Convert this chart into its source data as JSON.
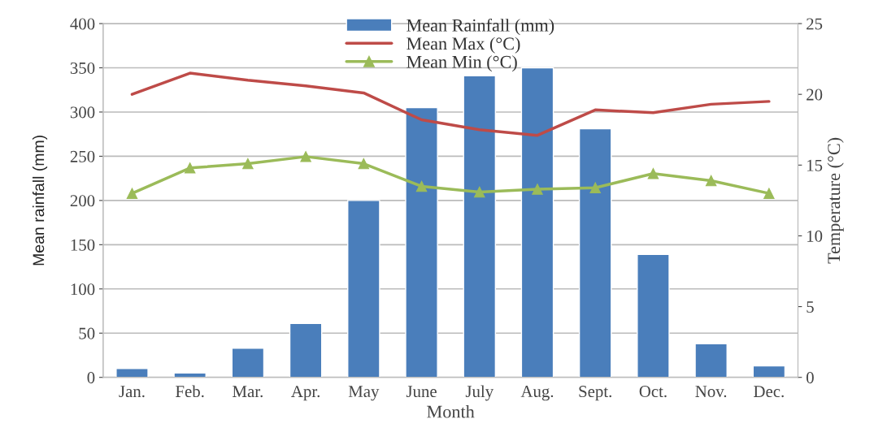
{
  "chart_data": {
    "type": "bar",
    "xlabel": "Month",
    "ylabel": "Mean rainfall (mm)",
    "y2label": "Temperature (°C)",
    "categories": [
      "Jan.",
      "Feb.",
      "Mar.",
      "Apr.",
      "May",
      "June",
      "July",
      "Aug.",
      "Sept.",
      "Oct.",
      "Nov.",
      "Dec."
    ],
    "series": [
      {
        "name": "Mean Rainfall (mm)",
        "color": "#4a7ebb",
        "values": [
          10,
          5,
          33,
          61,
          200,
          305,
          341,
          350,
          281,
          139,
          38,
          13
        ]
      },
      {
        "name": "Mean Max (°C)",
        "type": "line",
        "axis": "y2",
        "color": "#be4b48",
        "marker": "none",
        "values": [
          20.0,
          21.5,
          21.0,
          20.6,
          20.1,
          18.2,
          17.5,
          17.1,
          18.9,
          18.7,
          19.3,
          19.5
        ]
      },
      {
        "name": "Mean Min (°C)",
        "type": "line",
        "axis": "y2",
        "color": "#9bbb59",
        "marker": "triangle",
        "values": [
          13.0,
          14.8,
          15.1,
          15.6,
          15.1,
          13.5,
          13.1,
          13.3,
          13.4,
          14.4,
          13.9,
          13.0
        ]
      }
    ],
    "ylim": [
      0,
      400
    ],
    "yticks": [
      0,
      50,
      100,
      150,
      200,
      250,
      300,
      350,
      400
    ],
    "y2lim": [
      0,
      25
    ],
    "y2ticks": [
      0,
      5,
      10,
      15,
      20,
      25
    ],
    "grid": "y",
    "legend": "top"
  }
}
